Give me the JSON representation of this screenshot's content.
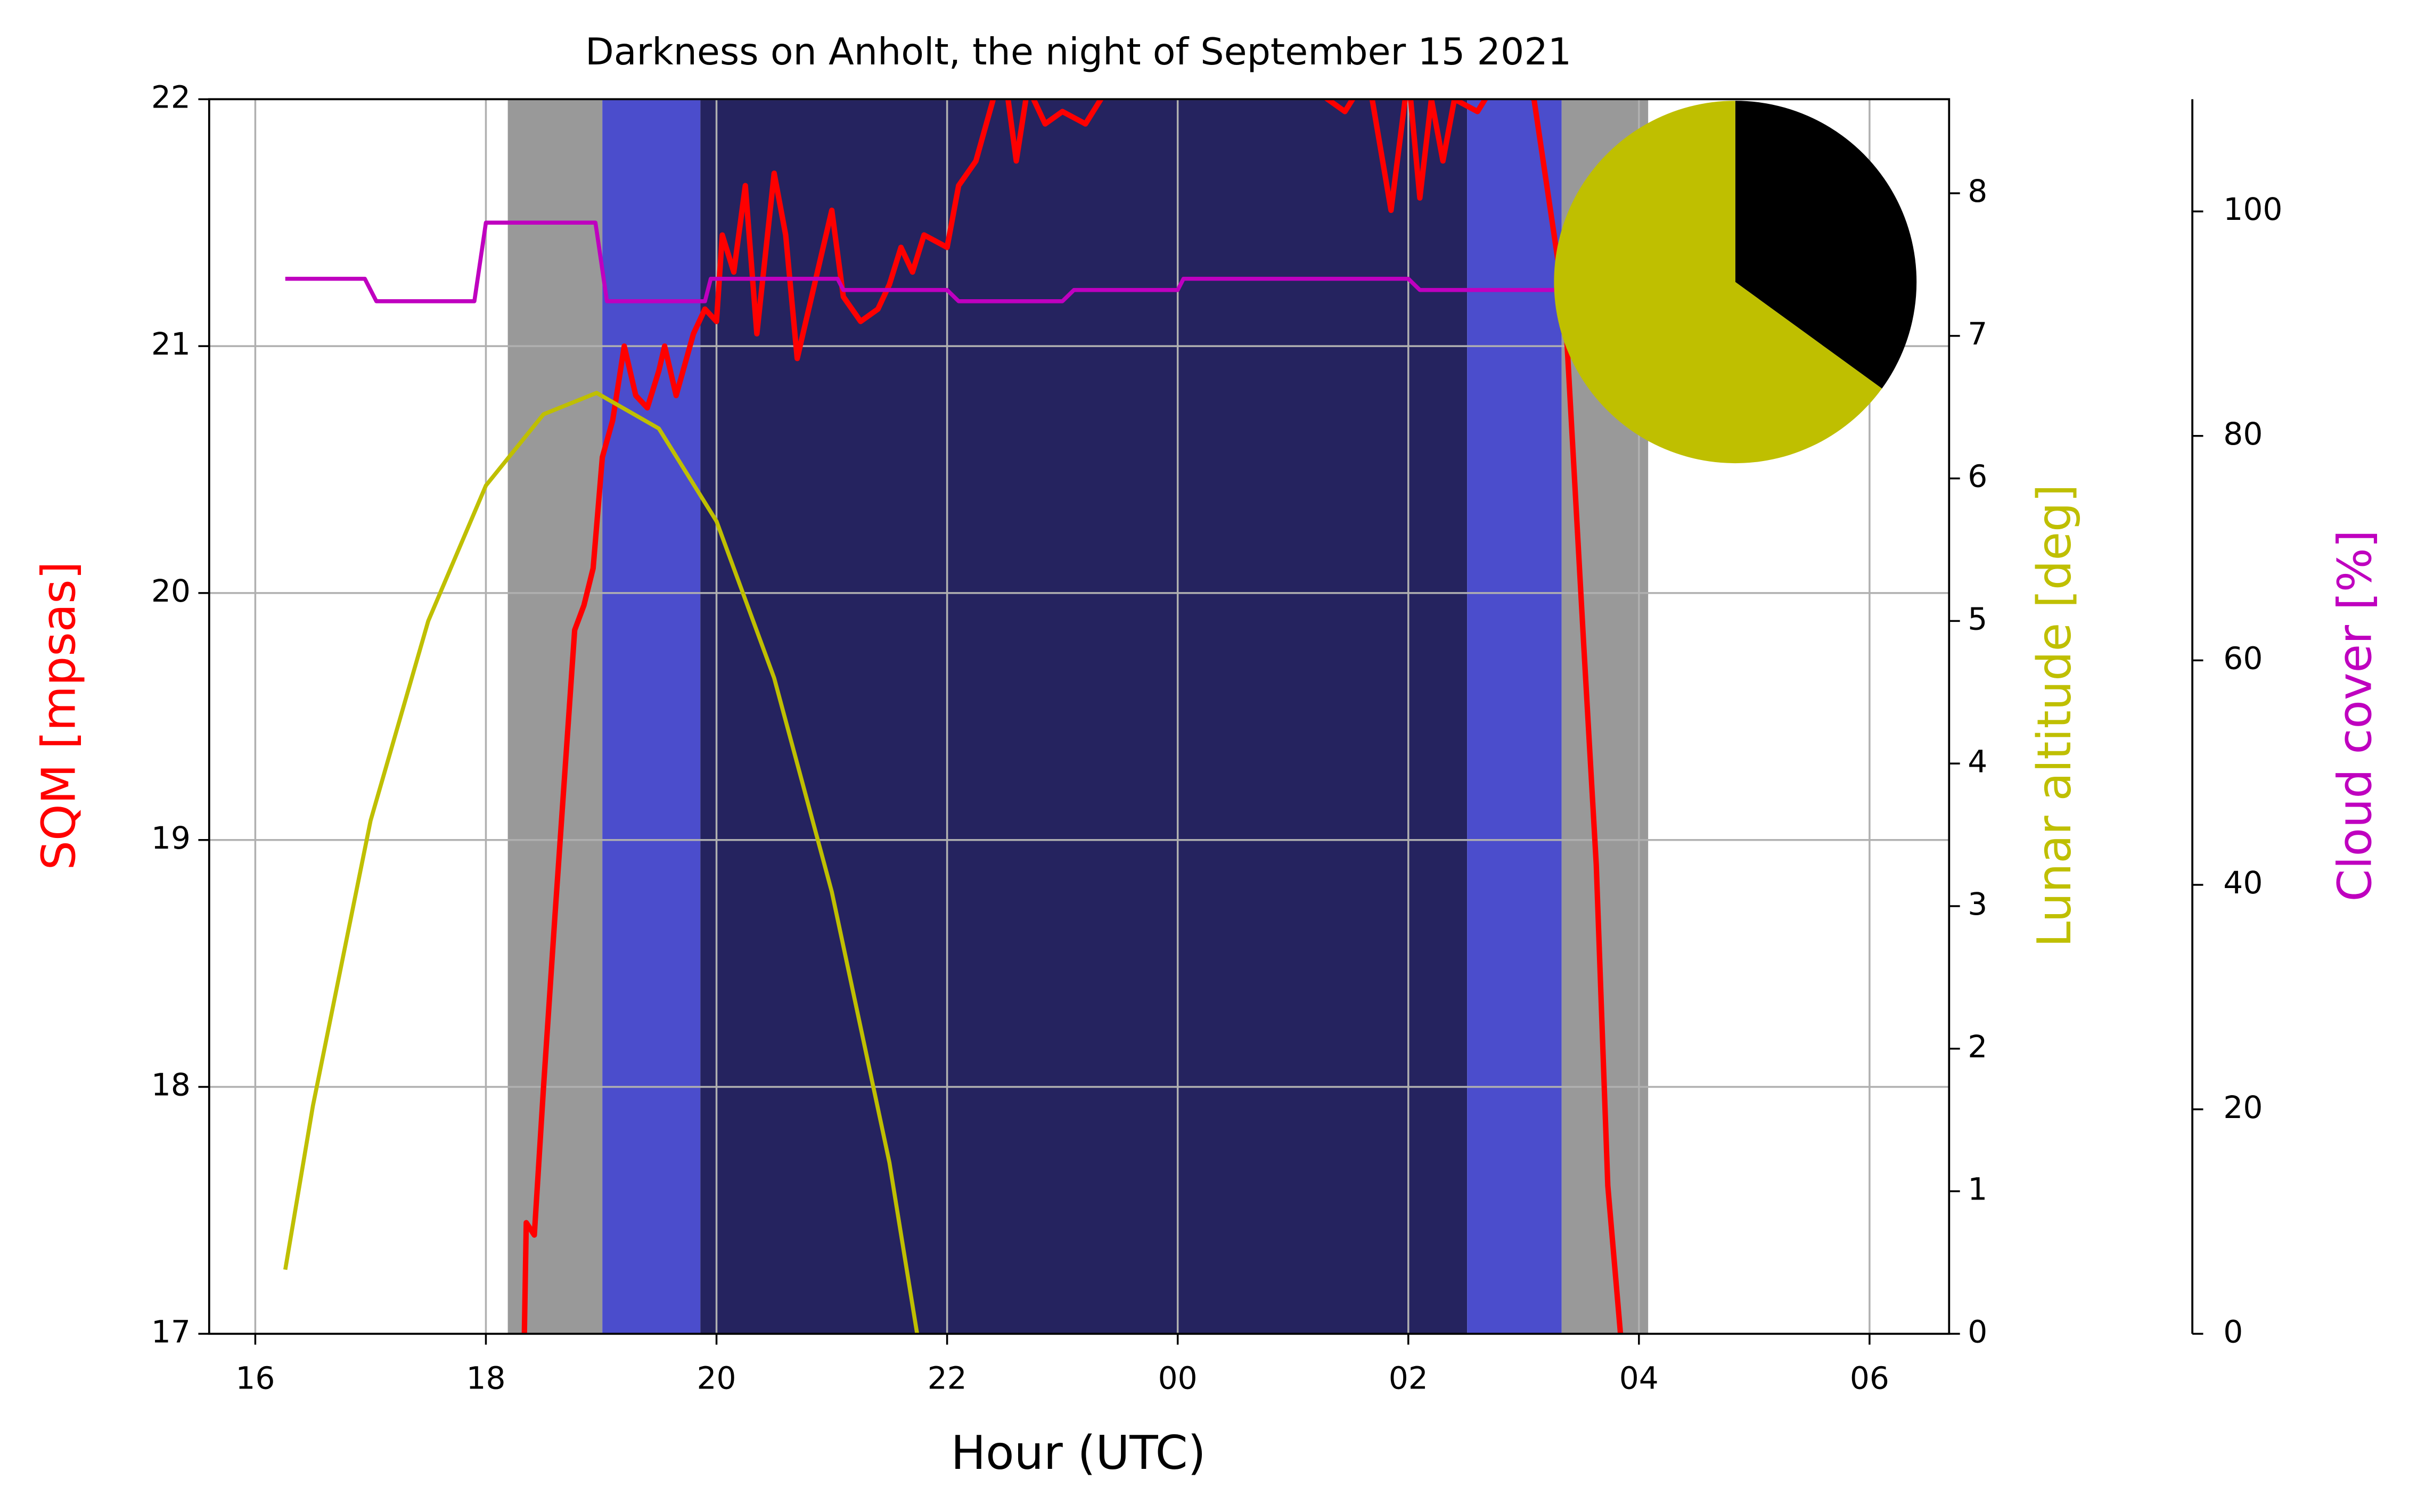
{
  "chart_data": [
    {
      "type": "line",
      "title": "Darkness on Anholt, the night of September 15 2021",
      "xlabel": "Hour (UTC)",
      "ylabel": "SQM [mpsas]",
      "y2label": "Lunar altitude [deg]",
      "y3label": "Cloud cover [%]",
      "xlim": [
        15.6,
        30.69
      ],
      "xticks": [
        16,
        18,
        20,
        22,
        {
          "value": 24,
          "label": "00"
        },
        {
          "value": 26,
          "label": "02"
        },
        {
          "value": 28,
          "label": "04"
        },
        {
          "value": 30,
          "label": "06"
        }
      ],
      "ylim": [
        17,
        22
      ],
      "yticks": [
        17,
        18,
        19,
        20,
        21,
        22
      ],
      "y2lim": [
        0,
        8.66
      ],
      "y2ticks": [
        0,
        1,
        2,
        3,
        4,
        5,
        6,
        7,
        8
      ],
      "y3lim": [
        0,
        110
      ],
      "y3ticks": [
        0,
        20,
        40,
        60,
        80,
        100
      ],
      "grid": true,
      "bands": [
        {
          "x": [
            18.19,
            19.01
          ],
          "color": "#999999"
        },
        {
          "x": [
            19.01,
            19.86
          ],
          "color": "#4b4dcc"
        },
        {
          "x": [
            19.86,
            26.51
          ],
          "color": "#25235f"
        },
        {
          "x": [
            26.51,
            27.33
          ],
          "color": "#4b4dcc"
        },
        {
          "x": [
            27.33,
            28.08
          ],
          "color": "#999999"
        }
      ],
      "series": [
        {
          "name": "SQM",
          "axis": "y",
          "color": "#ff0000",
          "x": [
            18.33,
            18.35,
            18.42,
            18.5,
            18.6,
            18.77,
            18.85,
            18.93,
            19.01,
            19.1,
            19.2,
            19.3,
            19.4,
            19.5,
            19.55,
            19.65,
            19.8,
            19.9,
            20.0,
            20.05,
            20.15,
            20.25,
            20.35,
            20.5,
            20.6,
            20.7,
            20.85,
            21.0,
            21.1,
            21.25,
            21.4,
            21.5,
            21.6,
            21.7,
            21.8,
            22.0,
            22.1,
            22.25,
            22.4,
            22.5,
            22.6,
            22.7,
            22.85,
            23.0,
            23.2,
            23.4,
            24.0,
            25.0,
            25.45,
            25.65,
            25.85,
            26.0,
            26.1,
            26.2,
            26.3,
            26.4,
            26.6,
            26.8,
            27.09,
            27.36,
            27.52,
            27.63,
            27.73,
            27.84
          ],
          "values": [
            16.9,
            17.45,
            17.4,
            18.0,
            18.7,
            19.85,
            19.95,
            20.1,
            20.55,
            20.7,
            21.0,
            20.8,
            20.75,
            20.9,
            21.0,
            20.8,
            21.05,
            21.15,
            21.1,
            21.45,
            21.3,
            21.65,
            21.05,
            21.7,
            21.45,
            20.95,
            21.25,
            21.55,
            21.2,
            21.1,
            21.15,
            21.25,
            21.4,
            21.3,
            21.45,
            21.4,
            21.65,
            21.75,
            22.0,
            22.1,
            21.75,
            22.05,
            21.9,
            21.95,
            21.9,
            22.05,
            22.1,
            22.1,
            21.95,
            22.1,
            21.55,
            22.1,
            21.6,
            22.0,
            21.75,
            22.0,
            21.95,
            22.1,
            22.0,
            21.15,
            19.8,
            18.9,
            17.6,
            17.0
          ]
        },
        {
          "name": "Lunar altitude",
          "axis": "y2",
          "color": "#bfbf00",
          "x": [
            16.26,
            16.5,
            17.0,
            17.5,
            18.0,
            18.5,
            18.96,
            19.5,
            20.0,
            20.5,
            21.0,
            21.5,
            21.74
          ],
          "values": [
            0.45,
            1.6,
            3.6,
            5.0,
            5.95,
            6.45,
            6.6,
            6.35,
            5.7,
            4.6,
            3.1,
            1.2,
            0.0
          ]
        },
        {
          "name": "Cloud cover",
          "axis": "y3",
          "color": "#bf00bf",
          "x": [
            16.26,
            16.95,
            17.05,
            17.9,
            18.0,
            18.95,
            19.05,
            19.9,
            19.95,
            21.05,
            21.1,
            22.0,
            22.1,
            23.0,
            23.1,
            24.0,
            24.05,
            26.0,
            26.1,
            27.3
          ],
          "values": [
            94,
            94,
            92,
            92,
            99,
            99,
            92,
            92,
            94,
            94,
            93,
            93,
            92,
            92,
            93,
            93,
            94,
            94,
            93,
            93
          ]
        }
      ]
    },
    {
      "type": "pie",
      "values": [
        35,
        65
      ],
      "colors": [
        "#000000",
        "#bfbf00"
      ]
    }
  ]
}
